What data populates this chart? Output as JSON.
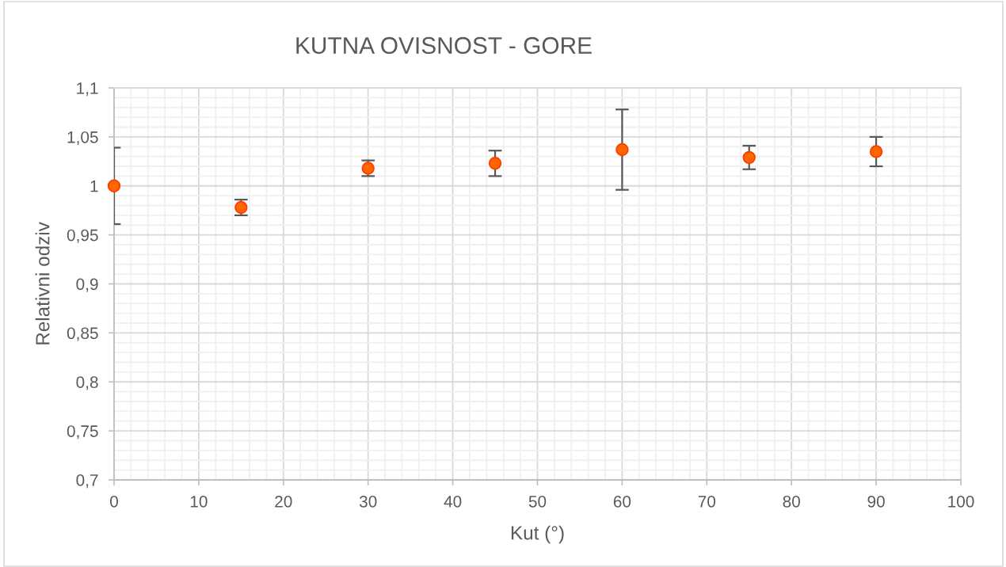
{
  "chart_data": {
    "type": "scatter",
    "title": "KUTNA OVISNOST - GORE",
    "xlabel": "Kut (°)",
    "ylabel": "Relativni odziv",
    "x": [
      0,
      15,
      30,
      45,
      60,
      75,
      90
    ],
    "series": [
      {
        "color": "#ff6600",
        "values": [
          1.0,
          0.978,
          1.018,
          1.023,
          1.037,
          1.029,
          1.035
        ],
        "errors": [
          0.039,
          0.008,
          0.008,
          0.013,
          0.041,
          0.012,
          0.015
        ]
      }
    ],
    "xlim": [
      0,
      100
    ],
    "ylim": [
      0.7,
      1.1
    ],
    "xticks": [
      0,
      10,
      20,
      30,
      40,
      50,
      60,
      70,
      80,
      90,
      100
    ],
    "yticks": [
      {
        "value": 0.7,
        "label": "0,7"
      },
      {
        "value": 0.75,
        "label": "0,75"
      },
      {
        "value": 0.8,
        "label": "0,8"
      },
      {
        "value": 0.85,
        "label": "0,85"
      },
      {
        "value": 0.9,
        "label": "0,9"
      },
      {
        "value": 0.95,
        "label": "0,95"
      },
      {
        "value": 1,
        "label": "1"
      },
      {
        "value": 1.05,
        "label": "1,05"
      },
      {
        "value": 1.1,
        "label": "1,1"
      }
    ],
    "grid": true,
    "marker": "circle"
  }
}
